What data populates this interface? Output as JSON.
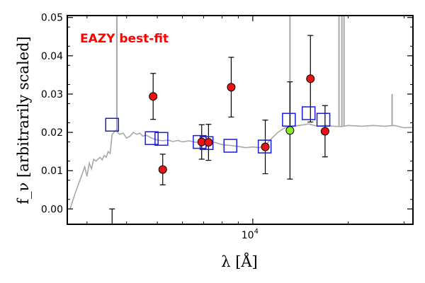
{
  "chart_data": {
    "type": "scatter",
    "annotation": "EAZY best-fit",
    "annotation_color": "#ff0000",
    "xlabel": "λ [Å]",
    "ylabel": "f_ν [arbitrarily scaled]",
    "x_scale": "log",
    "xlim": [
      2600,
      32000
    ],
    "ylim": [
      -0.004,
      0.0505
    ],
    "y_ticks": [
      0.0,
      0.01,
      0.02,
      0.03,
      0.04,
      0.05
    ],
    "y_tick_labels": [
      "0.00",
      "0.01",
      "0.02",
      "0.03",
      "0.04",
      "0.05"
    ],
    "x_ticks": [
      10000
    ],
    "x_tick_labels": [
      "10^4"
    ],
    "x_minor_ticks": [
      3000,
      4000,
      5000,
      6000,
      7000,
      8000,
      9000,
      20000,
      30000
    ],
    "grid": false,
    "colors": {
      "sed": "#a8a8a8",
      "model": "#1a1adc",
      "detection": "#ee1111",
      "highlight": "#88ee22",
      "errorbar": "#000000"
    },
    "model_photometry": [
      {
        "x": 3600,
        "y": 0.022
      },
      {
        "x": 4800,
        "y": 0.0185
      },
      {
        "x": 5150,
        "y": 0.0183
      },
      {
        "x": 6800,
        "y": 0.0175
      },
      {
        "x": 7150,
        "y": 0.0172
      },
      {
        "x": 8500,
        "y": 0.0165
      },
      {
        "x": 10900,
        "y": 0.0163
      },
      {
        "x": 13000,
        "y": 0.0233
      },
      {
        "x": 15000,
        "y": 0.025
      },
      {
        "x": 16700,
        "y": 0.0233
      }
    ],
    "observed_photometry": [
      {
        "x": 4850,
        "y": 0.0294,
        "err": 0.006,
        "highlight": false
      },
      {
        "x": 5200,
        "y": 0.0103,
        "err": 0.004,
        "highlight": false
      },
      {
        "x": 6900,
        "y": 0.0175,
        "err": 0.0045,
        "highlight": false
      },
      {
        "x": 7250,
        "y": 0.0174,
        "err": 0.0047,
        "highlight": false
      },
      {
        "x": 8550,
        "y": 0.0318,
        "err": 0.0078,
        "highlight": false
      },
      {
        "x": 10950,
        "y": 0.0162,
        "err": 0.007,
        "highlight": false
      },
      {
        "x": 13100,
        "y": 0.0205,
        "err": 0.0127,
        "highlight": true
      },
      {
        "x": 15200,
        "y": 0.034,
        "err": 0.0113,
        "highlight": false
      },
      {
        "x": 16900,
        "y": 0.0203,
        "err": 0.0067,
        "highlight": false
      }
    ],
    "upper_limit": {
      "x": 3600,
      "y": -0.004,
      "top": 0.0
    },
    "sed_curve": [
      [
        2650,
        -0.0001
      ],
      [
        2750,
        0.004
      ],
      [
        2850,
        0.0075
      ],
      [
        2950,
        0.011
      ],
      [
        3000,
        0.0085
      ],
      [
        3050,
        0.012
      ],
      [
        3100,
        0.0105
      ],
      [
        3150,
        0.013
      ],
      [
        3200,
        0.0125
      ],
      [
        3300,
        0.0135
      ],
      [
        3350,
        0.0128
      ],
      [
        3400,
        0.014
      ],
      [
        3450,
        0.0135
      ],
      [
        3500,
        0.015
      ],
      [
        3550,
        0.0145
      ],
      [
        3600,
        0.0195
      ],
      [
        3650,
        0.02
      ],
      [
        3700,
        0.0205
      ],
      [
        3800,
        0.0195
      ],
      [
        3900,
        0.0198
      ],
      [
        4000,
        0.0185
      ],
      [
        4100,
        0.019
      ],
      [
        4200,
        0.02
      ],
      [
        4300,
        0.0195
      ],
      [
        4400,
        0.0198
      ],
      [
        4500,
        0.019
      ],
      [
        4600,
        0.0193
      ],
      [
        4800,
        0.0185
      ],
      [
        5000,
        0.018
      ],
      [
        5200,
        0.0178
      ],
      [
        5400,
        0.018
      ],
      [
        5600,
        0.0176
      ],
      [
        5800,
        0.0179
      ],
      [
        6000,
        0.0175
      ],
      [
        6300,
        0.0178
      ],
      [
        6600,
        0.0174
      ],
      [
        6900,
        0.0176
      ],
      [
        7200,
        0.0172
      ],
      [
        7600,
        0.0174
      ],
      [
        8000,
        0.0168
      ],
      [
        8500,
        0.0166
      ],
      [
        9000,
        0.0163
      ],
      [
        9500,
        0.016
      ],
      [
        10000,
        0.0162
      ],
      [
        10500,
        0.016
      ],
      [
        11000,
        0.0168
      ],
      [
        11500,
        0.0185
      ],
      [
        12000,
        0.02
      ],
      [
        12500,
        0.021
      ],
      [
        13000,
        0.0215
      ],
      [
        14000,
        0.0218
      ],
      [
        15000,
        0.0222
      ],
      [
        16000,
        0.0216
      ],
      [
        17000,
        0.0218
      ],
      [
        18000,
        0.0216
      ],
      [
        19000,
        0.0215
      ],
      [
        20000,
        0.0218
      ],
      [
        22000,
        0.0216
      ],
      [
        24000,
        0.0218
      ],
      [
        26000,
        0.0216
      ],
      [
        28000,
        0.0218
      ],
      [
        30000,
        0.0212
      ],
      [
        32000,
        0.0213
      ]
    ],
    "emission_lines": [
      {
        "x": 3727,
        "top": 0.0505
      },
      {
        "x": 13100,
        "top": 0.0505
      },
      {
        "x": 18700,
        "top": 0.0505
      },
      {
        "x": 19100,
        "top": 0.0505
      },
      {
        "x": 19400,
        "top": 0.0505
      },
      {
        "x": 27500,
        "top": 0.03
      }
    ]
  }
}
